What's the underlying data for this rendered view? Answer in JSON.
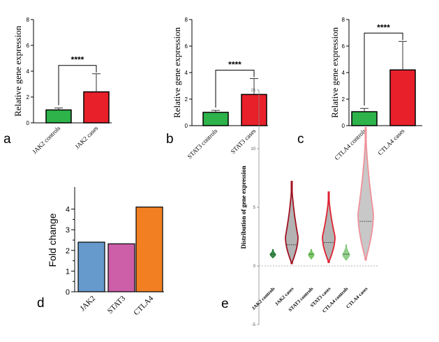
{
  "chart_data": [
    {
      "panel": "a",
      "type": "bar",
      "ylabel": "Relative gene expression",
      "ylim": [
        0,
        8
      ],
      "yticks": [
        0,
        2,
        4,
        6,
        8
      ],
      "categories": [
        "JAK2 controls",
        "JAK2 cases"
      ],
      "values": [
        1.0,
        2.4
      ],
      "errors": [
        0.15,
        1.4
      ],
      "colors": [
        "#2db34a",
        "#e8202a"
      ],
      "significance": "****"
    },
    {
      "panel": "b",
      "type": "bar",
      "ylabel": "Relative gene expression",
      "ylim": [
        0,
        8
      ],
      "yticks": [
        0,
        2,
        4,
        6,
        8
      ],
      "categories": [
        "STAT3 controls",
        "STAT3 cases"
      ],
      "values": [
        1.0,
        2.35
      ],
      "errors": [
        0.15,
        1.2
      ],
      "colors": [
        "#2db34a",
        "#e8202a"
      ],
      "significance": "****"
    },
    {
      "panel": "c",
      "type": "bar",
      "ylabel": "Relative gene expression",
      "ylim": [
        0,
        8
      ],
      "yticks": [
        0,
        2,
        4,
        6,
        8
      ],
      "categories": [
        "CTLA4 controls",
        "CTLA4 cases"
      ],
      "values": [
        1.05,
        4.2
      ],
      "errors": [
        0.25,
        2.15
      ],
      "colors": [
        "#2db34a",
        "#e8202a"
      ],
      "significance": "****"
    },
    {
      "panel": "d",
      "type": "bar",
      "ylabel": "Fold change",
      "ylim": [
        0,
        5
      ],
      "yticks": [
        0,
        1,
        2,
        3,
        4
      ],
      "categories": [
        "JAK2",
        "STAT3",
        "CTLA4"
      ],
      "values": [
        2.4,
        2.32,
        4.1
      ],
      "colors": [
        "#6699cc",
        "#cc5fa8",
        "#f28022"
      ]
    },
    {
      "panel": "e",
      "type": "violin",
      "ylabel": "Distribution of gene expression",
      "ylim": [
        -5,
        15
      ],
      "yticks": [
        -5,
        0,
        5,
        10,
        15
      ],
      "categories": [
        "JAK2 controls",
        "JAK2 cases",
        "STAT3 controls",
        "STAT3 cases",
        "CTLA4 controls",
        "CTLA4 cases"
      ],
      "min": [
        0.7,
        0.2,
        0.6,
        0.3,
        0.5,
        0.5
      ],
      "max": [
        1.4,
        7.2,
        1.4,
        6.3,
        1.8,
        11.8
      ],
      "medians": [
        1.0,
        1.8,
        1.0,
        2.0,
        1.0,
        3.8
      ],
      "peak": [
        1.0,
        2.5,
        1.0,
        2.5,
        1.0,
        4.5
      ],
      "colors": [
        "#1a7a2e",
        "#a01020",
        "#66c050",
        "#e02030",
        "#80c878",
        "#f0909a"
      ]
    }
  ]
}
